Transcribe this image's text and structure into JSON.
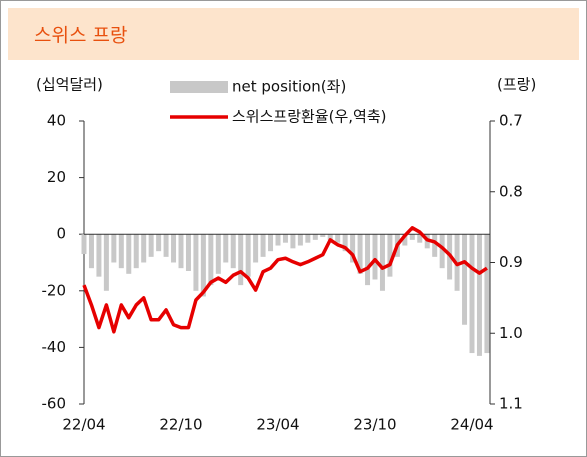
{
  "chart_data": {
    "type": "bar_line",
    "title": "스위스 프랑",
    "y_label": "(십억달러)",
    "y2_label": "(프랑)",
    "categories": [
      "22/04",
      null,
      null,
      null,
      null,
      null,
      null,
      null,
      null,
      null,
      null,
      null,
      null,
      "22/10",
      null,
      null,
      null,
      null,
      null,
      null,
      null,
      null,
      null,
      null,
      null,
      null,
      "23/04",
      null,
      null,
      null,
      null,
      null,
      null,
      null,
      null,
      null,
      null,
      null,
      null,
      "23/10",
      null,
      null,
      null,
      null,
      null,
      null,
      null,
      null,
      null,
      null,
      null,
      null,
      "24/04",
      null,
      null
    ],
    "series": [
      {
        "name": "net position(좌)",
        "type": "bar",
        "color": "#c8c8c8",
        "values": [
          -7,
          -12,
          -15,
          -20,
          -10,
          -12,
          -14,
          -12,
          -10,
          -8,
          -6,
          -8,
          -10,
          -12,
          -13,
          -20,
          -22,
          -18,
          -14,
          -10,
          -12,
          -18,
          -15,
          -10,
          -8,
          -6,
          -4,
          -3,
          -5,
          -4,
          -3,
          -2,
          -1,
          -2,
          -3,
          -6,
          -10,
          -14,
          -18,
          -16,
          -20,
          -15,
          -8,
          -4,
          -2,
          -3,
          -5,
          -8,
          -12,
          -16,
          -20,
          -32,
          -42,
          -43,
          -42
        ]
      },
      {
        "name": "스위스프랑환율(우,역축)",
        "type": "line",
        "axis": "y2",
        "color": "#e60000",
        "values": [
          0.932,
          0.96,
          0.992,
          0.96,
          0.998,
          0.96,
          0.978,
          0.96,
          0.95,
          0.981,
          0.981,
          0.967,
          0.988,
          0.992,
          0.992,
          0.953,
          0.942,
          0.928,
          0.922,
          0.928,
          0.918,
          0.913,
          0.922,
          0.939,
          0.913,
          0.908,
          0.896,
          0.894,
          0.899,
          0.903,
          0.899,
          0.894,
          0.889,
          0.868,
          0.875,
          0.879,
          0.889,
          0.913,
          0.908,
          0.896,
          0.908,
          0.903,
          0.875,
          0.862,
          0.851,
          0.857,
          0.868,
          0.871,
          0.879,
          0.889,
          0.903,
          0.899,
          0.908,
          0.915,
          0.908
        ]
      }
    ],
    "ylim": [
      -60,
      40
    ],
    "yticks": [
      -60,
      -40,
      -20,
      0,
      20,
      40
    ],
    "y2lim": [
      1.1,
      0.7
    ],
    "y2ticks": [
      0.7,
      0.8,
      0.9,
      {
        "value": 1,
        "label": "1.0"
      },
      1.1
    ]
  }
}
